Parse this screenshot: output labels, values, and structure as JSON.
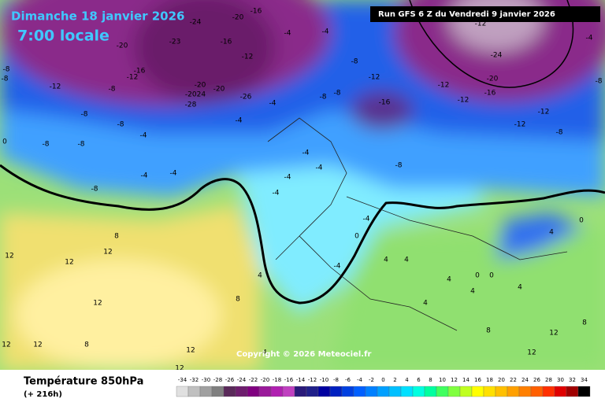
{
  "header": {
    "date": "Dimanche 18 janvier 2026",
    "time": "7:00 locale",
    "run": "Run GFS 6 Z du Vendredi 9 janvier 2026"
  },
  "map": {
    "labels": [
      "-20",
      "-23",
      "-24",
      "-16",
      "-12",
      "-20",
      "-16",
      "-20",
      "-20",
      "-26",
      "-2024",
      "-28",
      "-16",
      "-12",
      "-8",
      "-8",
      "-12",
      "-8",
      "-8",
      "-8",
      "-8",
      "-8",
      "0",
      "-4",
      "-4",
      "-8",
      "-4",
      "-4",
      "-4",
      "-8",
      "-12",
      "-8",
      "-8",
      "-16",
      "-24",
      "-20",
      "-12",
      "-12",
      "-16",
      "-12",
      "-12",
      "-8",
      "-8",
      "-4",
      "-8",
      "-4",
      "-4",
      "-12",
      "-8",
      "-4",
      "-4",
      "-4",
      "-4",
      "-4",
      "0",
      "-4",
      "4",
      "4",
      "4",
      "0",
      "0",
      "4",
      "0",
      "4",
      "4",
      "4",
      "8",
      "12",
      "12",
      "12",
      "12",
      "8",
      "4",
      "4",
      "12",
      "12",
      "12",
      "8",
      "12",
      "12",
      "12",
      "8",
      "8"
    ],
    "copyright": "Copyright © 2026 Meteociel.fr"
  },
  "footer": {
    "title": "Température 850hPa",
    "lead": "(+ 216h)"
  },
  "legend": {
    "values": [
      -34,
      -32,
      -30,
      -28,
      -26,
      -24,
      -22,
      -20,
      -18,
      -16,
      -14,
      -12,
      -10,
      -8,
      -6,
      -4,
      -2,
      0,
      2,
      4,
      6,
      8,
      10,
      12,
      14,
      16,
      18,
      20,
      22,
      24,
      26,
      28,
      30,
      32,
      34
    ],
    "colors": [
      "#e0e0e0",
      "#c0c0c0",
      "#a0a0a0",
      "#808080",
      "#5a2a5a",
      "#6e1e6e",
      "#800080",
      "#9a1a9a",
      "#b020b0",
      "#c040c0",
      "#2a1a7a",
      "#20208a",
      "#0000a0",
      "#0020c0",
      "#0040e0",
      "#0060ff",
      "#0080ff",
      "#00a0ff",
      "#00c0ff",
      "#00e0ff",
      "#00ffe0",
      "#00ffa0",
      "#40ff60",
      "#80ff40",
      "#c0ff20",
      "#ffff00",
      "#ffe000",
      "#ffc000",
      "#ffa000",
      "#ff8000",
      "#ff6000",
      "#ff3000",
      "#e00000",
      "#a00000",
      "#000000"
    ]
  }
}
